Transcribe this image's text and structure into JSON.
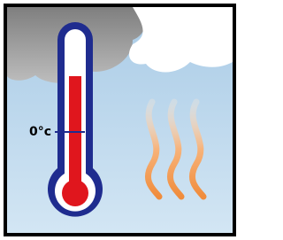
{
  "label": "0°c"
}
